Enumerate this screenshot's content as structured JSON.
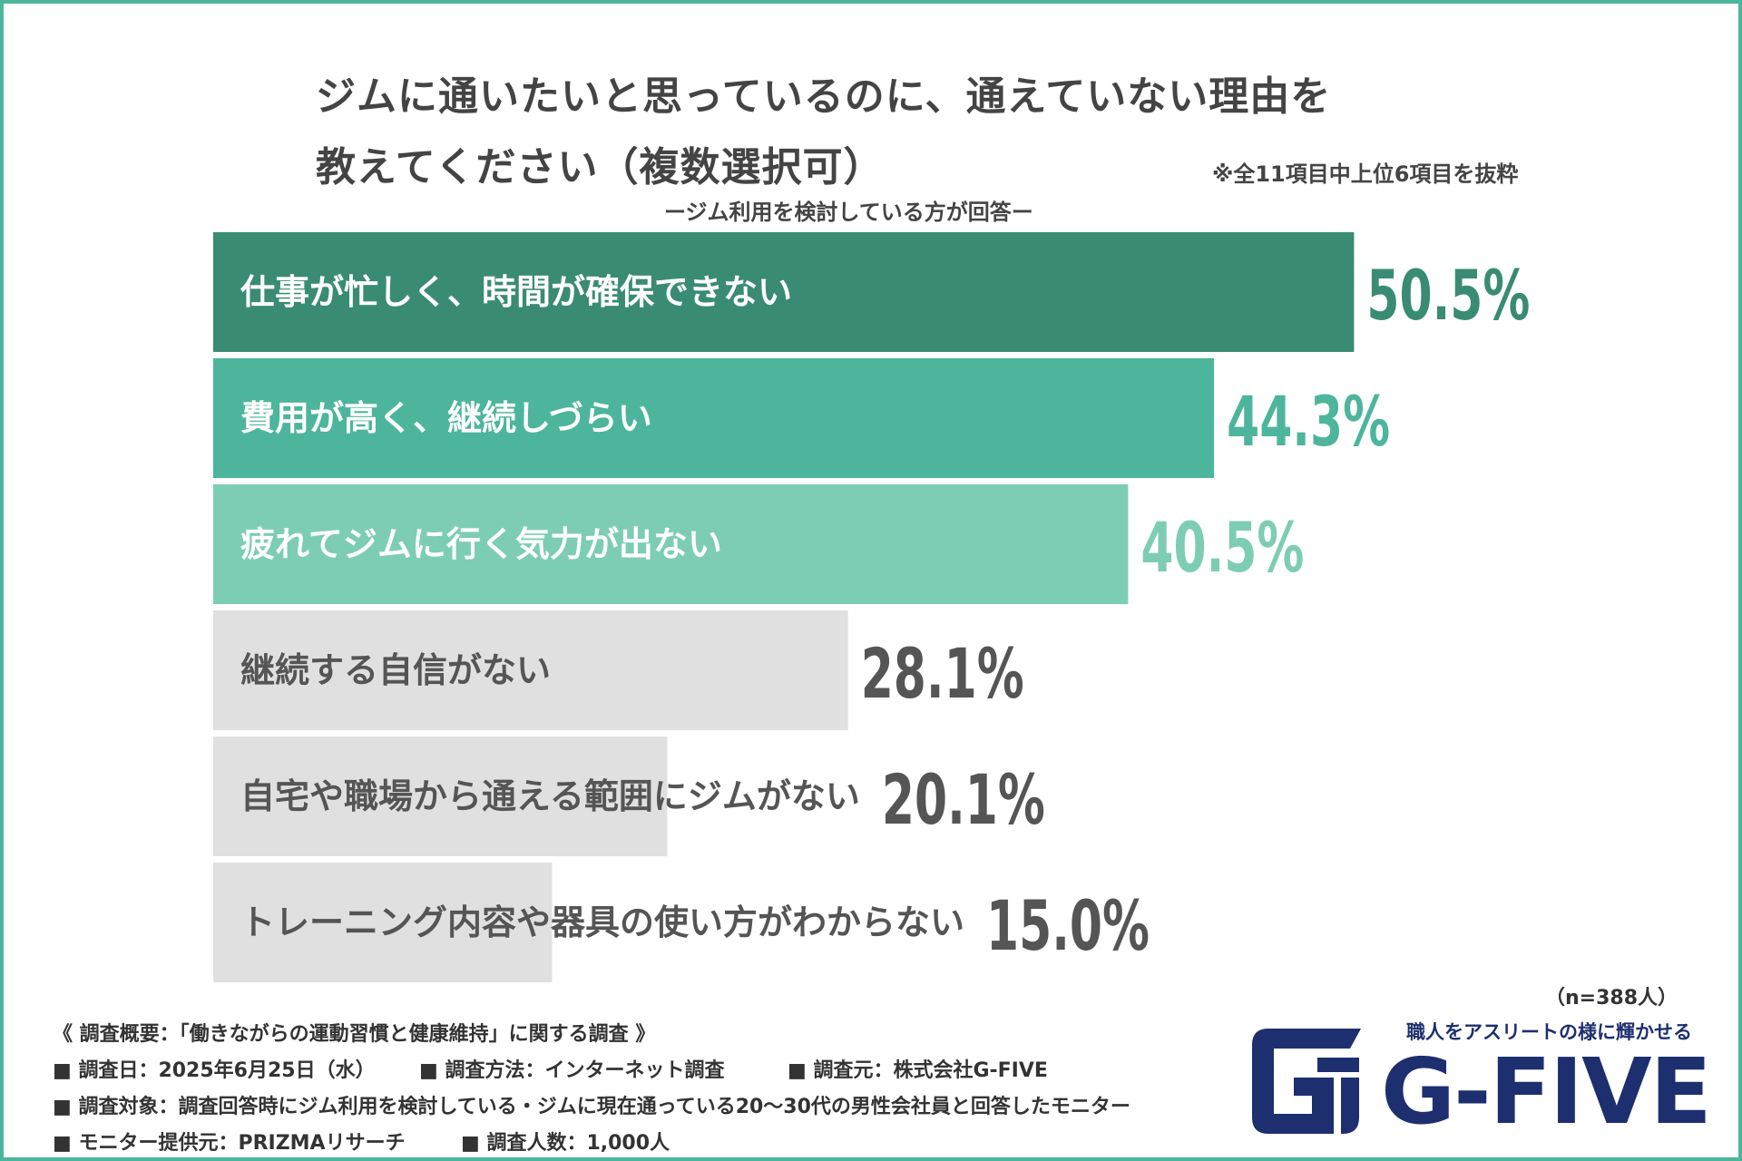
{
  "title_line1": "ジムに通いたいと思っているのに、通えていない理由を",
  "title_line2": "教えてください（複数選択可）",
  "note": "※全11項目中上位6項目を抜粋",
  "subtitle": "ージム利用を検討している方が回答ー",
  "chart_data": {
    "type": "bar",
    "orientation": "horizontal",
    "categories": [
      "仕事が忙しく、時間が確保できない",
      "費用が高く、継続しづらい",
      "疲れてジムに行く気力が出ない",
      "継続する自信がない",
      "自宅や職場から通える範囲にジムがない",
      "トレーニング内容や器具の使い方がわからない"
    ],
    "values": [
      50.5,
      44.3,
      40.5,
      28.1,
      20.1,
      15.0
    ],
    "value_labels": [
      "50.5%",
      "44.3%",
      "40.5%",
      "28.1%",
      "20.1%",
      "15.0%"
    ],
    "unit": "%",
    "colors": [
      "#3a8b73",
      "#4db59b",
      "#7dcdb5",
      "#e0e0e0",
      "#e0e0e0",
      "#e0e0e0"
    ],
    "label_colors": [
      "#ffffff",
      "#ffffff",
      "#ffffff",
      "#555555",
      "#555555",
      "#555555"
    ],
    "value_colors": [
      "#3a8b73",
      "#4db59b",
      "#7dcdb5",
      "#555555",
      "#555555",
      "#555555"
    ]
  },
  "sample_size": "（n=388人）",
  "survey": {
    "overview": "《 調査概要：「働きながらの運動習慣と健康維持」に関する調査 》",
    "date": "■ 調査日：2025年6月25日（水）",
    "method": "■ 調査方法：インターネット調査",
    "source": "■ 調査元：株式会社G-FIVE",
    "target": "■ 調査対象：調査回答時にジム利用を検討している・ジムに現在通っている20〜30代の男性会社員と回答したモニター",
    "provider": "■ モニター提供元：PRIZMAリサーチ",
    "count": "■ 調査人数：1,000人"
  },
  "logo": {
    "tagline": "職人をアスリートの様に輝かせる",
    "wordmark": "G-FIVE",
    "color": "#1d2f6f"
  }
}
